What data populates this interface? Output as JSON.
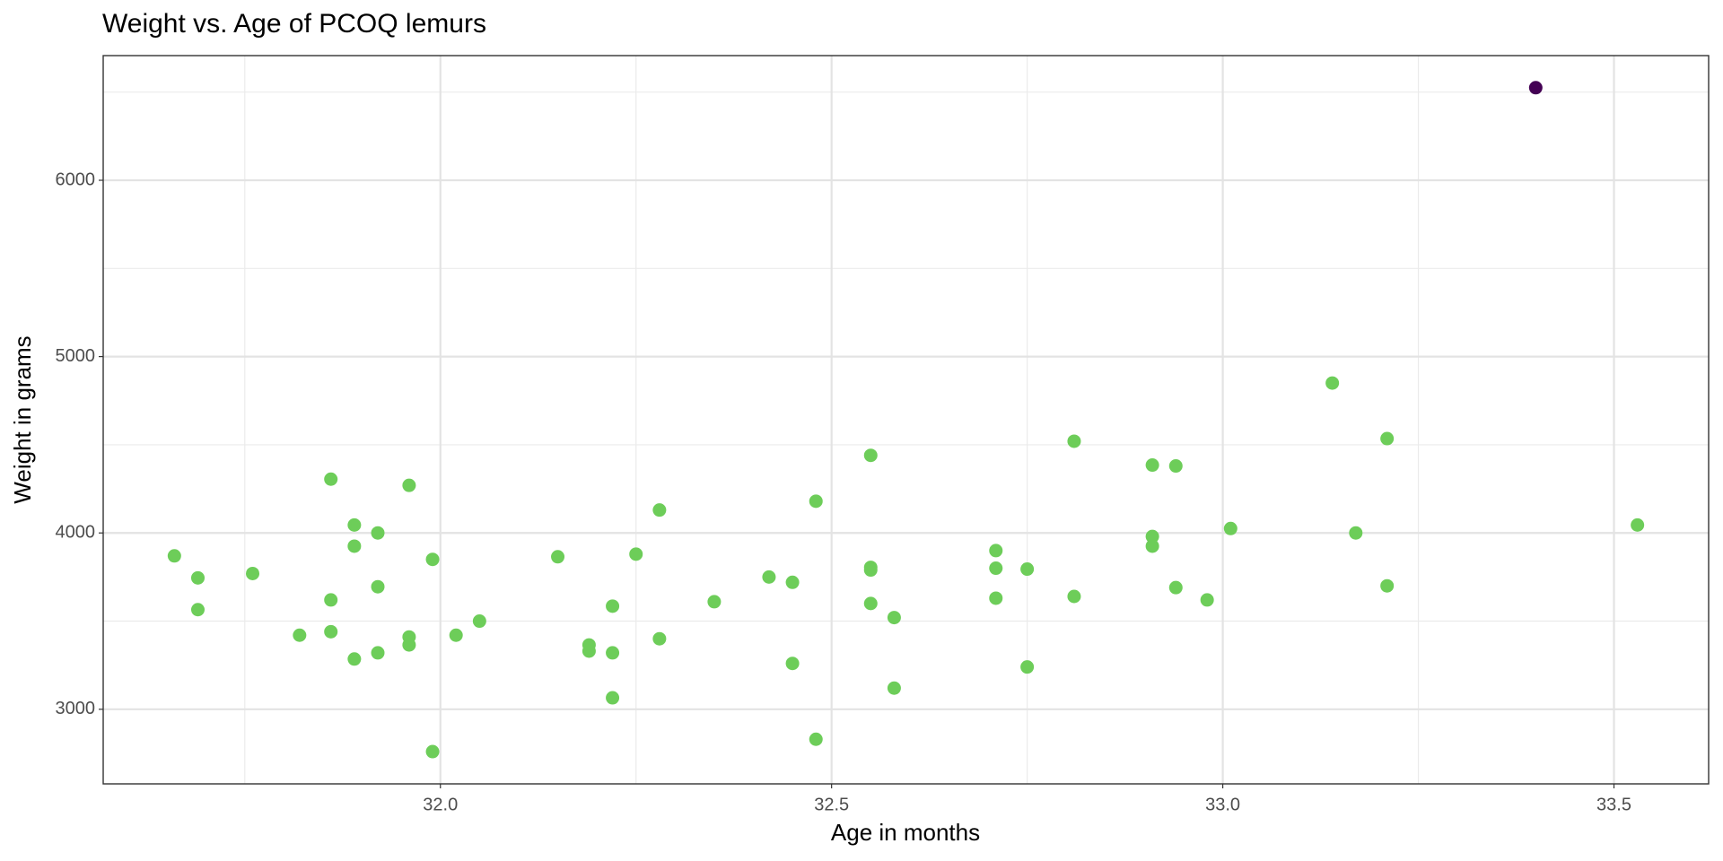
{
  "chart_data": {
    "type": "scatter",
    "title": "Weight vs. Age of PCOQ lemurs",
    "x_label": "Age in months",
    "y_label": "Weight in grams",
    "xlim": [
      31.569,
      33.621
    ],
    "ylim": [
      2577,
      6707
    ],
    "xticks": [
      {
        "value": 32.0,
        "label": "32.0"
      },
      {
        "value": 32.5,
        "label": "32.5"
      },
      {
        "value": 33.0,
        "label": "33.0"
      },
      {
        "value": 33.5,
        "label": "33.5"
      }
    ],
    "yticks": [
      3000,
      4000,
      5000,
      6000
    ],
    "grid": true,
    "series": [
      {
        "color": "#6dcd59",
        "x": [
          31.66,
          31.69,
          31.69,
          31.76,
          31.82,
          31.86,
          31.86,
          31.86,
          31.89,
          31.89,
          31.89,
          31.92,
          31.92,
          31.92,
          31.96,
          31.96,
          31.96,
          31.99,
          31.99,
          32.02,
          32.05,
          32.15,
          32.19,
          32.19,
          32.22,
          32.22,
          32.22,
          32.25,
          32.28,
          32.28,
          32.35,
          32.42,
          32.45,
          32.45,
          32.48,
          32.48,
          32.55,
          32.55,
          32.55,
          32.55,
          32.58,
          32.58,
          32.71,
          32.71,
          32.71,
          32.75,
          32.75,
          32.81,
          32.81,
          32.91,
          32.91,
          32.91,
          32.94,
          32.94,
          32.98,
          33.01,
          33.14,
          33.17,
          33.21,
          33.21,
          33.53
        ],
        "values": [
          3870,
          3745,
          3565,
          3770,
          3420,
          4305,
          3620,
          3440,
          4045,
          3925,
          3285,
          4000,
          3695,
          3320,
          4270,
          3410,
          3365,
          3850,
          2760,
          3420,
          3500,
          3865,
          3365,
          3330,
          3585,
          3320,
          3065,
          3880,
          4130,
          3400,
          3610,
          3750,
          3720,
          3260,
          4180,
          2830,
          4440,
          3805,
          3790,
          3600,
          3520,
          3120,
          3900,
          3800,
          3630,
          3795,
          3240,
          4520,
          3640,
          4385,
          3980,
          3925,
          4380,
          3690,
          3620,
          4025,
          4850,
          4000,
          4535,
          3700,
          4045
        ]
      },
      {
        "color": "#440154",
        "x": [
          33.4
        ],
        "values": [
          6525
        ]
      }
    ]
  }
}
